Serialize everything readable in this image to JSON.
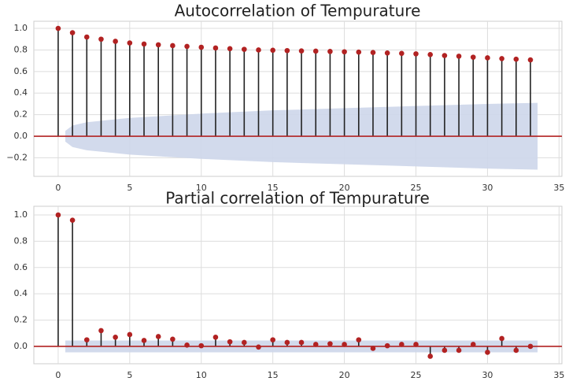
{
  "chart_data": [
    {
      "type": "stem",
      "title": "Autocorrelation of Tempurature",
      "x": [
        0,
        1,
        2,
        3,
        4,
        5,
        6,
        7,
        8,
        9,
        10,
        11,
        12,
        13,
        14,
        15,
        16,
        17,
        18,
        19,
        20,
        21,
        22,
        23,
        24,
        25,
        26,
        27,
        28,
        29,
        30,
        31,
        32,
        33
      ],
      "values": [
        1.0,
        0.96,
        0.92,
        0.9,
        0.88,
        0.865,
        0.855,
        0.848,
        0.84,
        0.833,
        0.825,
        0.818,
        0.812,
        0.806,
        0.8,
        0.797,
        0.794,
        0.791,
        0.789,
        0.786,
        0.783,
        0.78,
        0.776,
        0.772,
        0.768,
        0.764,
        0.757,
        0.748,
        0.742,
        0.733,
        0.727,
        0.72,
        0.714,
        0.708
      ],
      "color": "#b22222",
      "band_x": [
        0.5,
        1,
        2,
        5,
        10,
        15,
        20,
        25,
        30,
        33.5
      ],
      "band_upper": [
        0.05,
        0.1,
        0.13,
        0.17,
        0.21,
        0.24,
        0.26,
        0.28,
        0.3,
        0.31
      ],
      "band_lower": [
        -0.05,
        -0.1,
        -0.13,
        -0.17,
        -0.21,
        -0.24,
        -0.26,
        -0.28,
        -0.3,
        -0.31
      ],
      "band_color": "#cdd6ea",
      "xlim": [
        -1.7,
        35.2
      ],
      "ylim": [
        -0.372,
        1.066
      ],
      "xticks": [
        0,
        5,
        10,
        15,
        20,
        25,
        30,
        35
      ],
      "yticks": [
        {
          "value": -0.2,
          "label": "−0.2"
        },
        {
          "value": 0,
          "label": "0.0"
        },
        0.2,
        0.4,
        0.6,
        0.8,
        {
          "value": 1,
          "label": "1.0"
        }
      ],
      "grid": true
    },
    {
      "type": "stem",
      "title": "Partial correlation of Tempurature",
      "x": [
        0,
        1,
        2,
        3,
        4,
        5,
        6,
        7,
        8,
        9,
        10,
        11,
        12,
        13,
        14,
        15,
        16,
        17,
        18,
        19,
        20,
        21,
        22,
        23,
        24,
        25,
        26,
        27,
        28,
        29,
        30,
        31,
        32,
        33
      ],
      "values": [
        1.0,
        0.96,
        0.05,
        0.12,
        0.07,
        0.09,
        0.045,
        0.075,
        0.055,
        0.01,
        0.005,
        0.07,
        0.035,
        0.03,
        -0.005,
        0.05,
        0.03,
        0.03,
        0.015,
        0.02,
        0.015,
        0.05,
        -0.015,
        0.005,
        0.015,
        0.015,
        -0.075,
        -0.03,
        -0.03,
        0.015,
        -0.045,
        0.06,
        -0.03,
        0.0
      ],
      "color": "#b22222",
      "band_x": [
        0.5,
        33.5
      ],
      "band_upper": [
        0.045,
        0.045
      ],
      "band_lower": [
        -0.045,
        -0.045
      ],
      "band_color": "#cdd6ea",
      "xlim": [
        -1.7,
        35.2
      ],
      "ylim": [
        -0.132,
        1.066
      ],
      "xticks": [
        0,
        5,
        10,
        15,
        20,
        25,
        30,
        35
      ],
      "yticks": [
        {
          "value": 0,
          "label": "0.0"
        },
        0.2,
        0.4,
        0.6,
        0.8,
        {
          "value": 1,
          "label": "1.0"
        }
      ],
      "grid": true
    }
  ]
}
